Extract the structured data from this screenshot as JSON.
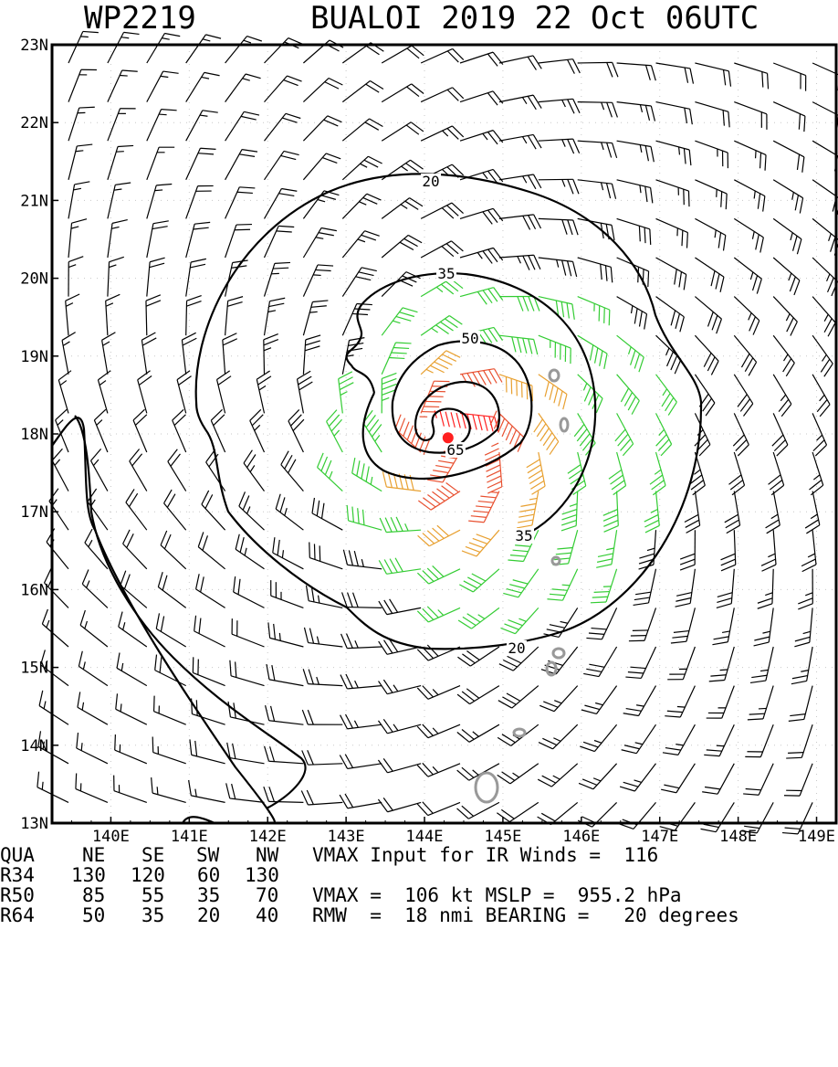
{
  "header": {
    "storm_id": "WP2219",
    "storm_name_time": "BUALOI 2019 22 Oct 06UTC"
  },
  "chart_data": {
    "type": "wind-barb-map",
    "lon_ticks": [
      "140E",
      "141E",
      "142E",
      "143E",
      "144E",
      "145E",
      "146E",
      "147E",
      "148E",
      "149E"
    ],
    "lat_ticks": [
      "23N",
      "22N",
      "21N",
      "20N",
      "19N",
      "18N",
      "17N",
      "16N",
      "15N",
      "14N",
      "13N"
    ],
    "lon_range": [
      139.25,
      149.25
    ],
    "lat_range": [
      13,
      23
    ],
    "center": {
      "lon": 144.3,
      "lat": 17.95
    },
    "contours": [
      {
        "label": "20",
        "kind": "outer"
      },
      {
        "label": "35",
        "kind": "spiral"
      },
      {
        "label": "50",
        "kind": "spiral"
      },
      {
        "label": "65",
        "kind": "inner"
      }
    ],
    "barb_colors": {
      "calm": "#000000",
      "r34": "#33cc33",
      "r50": "#e8a030",
      "r64": "#e85030",
      "r100": "#ff2020"
    },
    "land_color": "#999999",
    "center_color": "#ff2020"
  },
  "footer": {
    "quad_header": {
      "label": "QUA",
      "ne": "NE",
      "se": "SE",
      "sw": "SW",
      "nw": "NW"
    },
    "r34": {
      "label": "R34",
      "ne": "130",
      "se": "120",
      "sw": "60",
      "nw": "130"
    },
    "r50": {
      "label": "R50",
      "ne": "85",
      "se": "55",
      "sw": "35",
      "nw": "70"
    },
    "r64": {
      "label": "R64",
      "ne": "50",
      "se": "35",
      "sw": "20",
      "nw": "40"
    },
    "vmax_input_text": "VMAX Input for IR Winds =  116",
    "vmax_mslp_text": "VMAX =  106 kt MSLP =  955.2 hPa",
    "rmw_bearing_text": "RMW  =  18 nmi BEARING =   20 degrees"
  }
}
